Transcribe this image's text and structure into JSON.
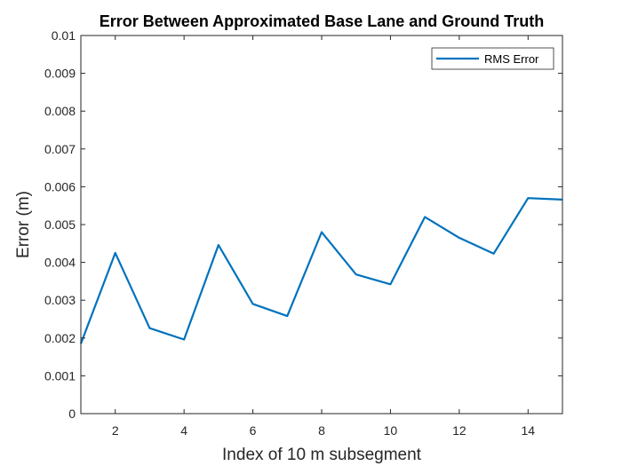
{
  "chart_data": {
    "type": "line",
    "title": "Error Between Approximated Base Lane and Ground Truth",
    "xlabel": "Index of 10 m subsegment",
    "ylabel": "Error (m)",
    "xlim": [
      1,
      15
    ],
    "ylim": [
      0,
      0.01
    ],
    "x_ticks": [
      2,
      4,
      6,
      8,
      10,
      12,
      14
    ],
    "y_ticks": [
      0,
      0.001,
      0.002,
      0.003,
      0.004,
      0.005,
      0.006,
      0.007,
      0.008,
      0.009,
      0.01
    ],
    "x_tick_labels": [
      "2",
      "4",
      "6",
      "8",
      "10",
      "12",
      "14"
    ],
    "y_tick_labels": [
      "0",
      "0.001",
      "0.002",
      "0.003",
      "0.004",
      "0.005",
      "0.006",
      "0.007",
      "0.008",
      "0.009",
      "0.01"
    ],
    "grid": false,
    "legend_position": "top-right",
    "series": [
      {
        "name": "RMS Error",
        "color": "#0072bd",
        "x": [
          1,
          2,
          3,
          4,
          5,
          6,
          7,
          8,
          9,
          10,
          11,
          12,
          13,
          14,
          15
        ],
        "y": [
          0.00185,
          0.00425,
          0.00226,
          0.00196,
          0.00446,
          0.0029,
          0.00258,
          0.0048,
          0.00368,
          0.00342,
          0.0052,
          0.00465,
          0.00423,
          0.0057,
          0.00566
        ]
      }
    ]
  }
}
